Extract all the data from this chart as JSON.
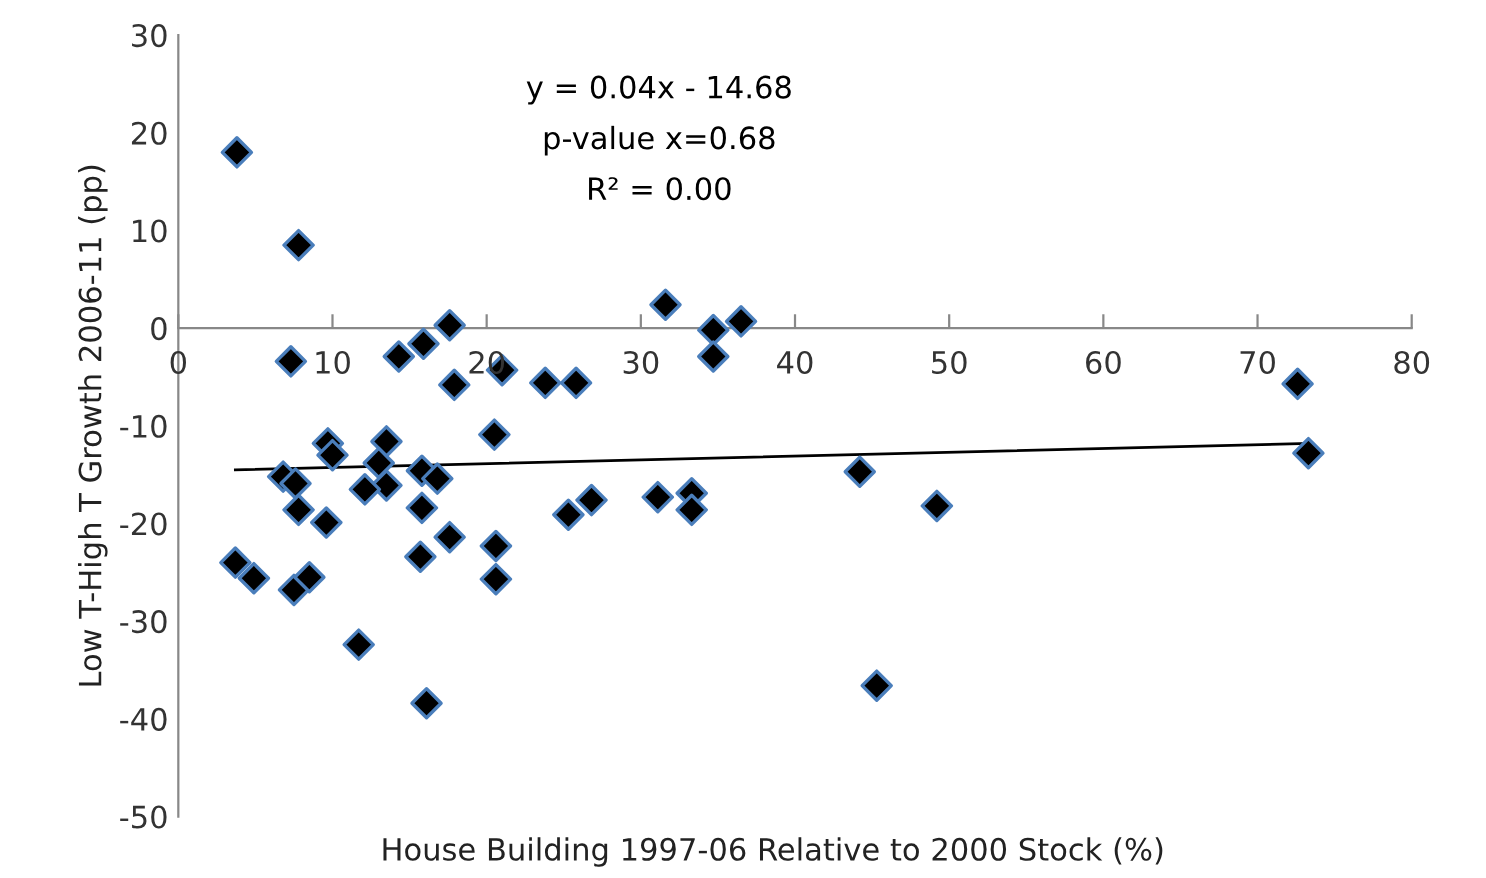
{
  "chart_data": {
    "type": "scatter",
    "xlabel": "House Building 1997-06 Relative to 2000 Stock (%)",
    "ylabel": "Low T-High T Growth 2006-11 (pp)",
    "xlim": [
      0,
      80
    ],
    "xticks": [
      0,
      10,
      20,
      30,
      40,
      50,
      60,
      70,
      80
    ],
    "ylim": [
      -50,
      30
    ],
    "yticks": [
      -50,
      -40,
      -30,
      -20,
      -10,
      0,
      10,
      20,
      30
    ],
    "grid": false,
    "legend": false,
    "marker": "diamond",
    "annotations": [
      "y = 0.04x - 14.68",
      "p-value x=0.68",
      "R² = 0.00"
    ],
    "series": [
      {
        "color": "#000000",
        "x": [
          3.8,
          7.8,
          7.3,
          14.3,
          15.9,
          17.6,
          17.9,
          21.0,
          23.8,
          25.8,
          9.7,
          10.0,
          13.5,
          13.0,
          6.8,
          7.6,
          13.5,
          12.1,
          15.8,
          16.8,
          20.5,
          7.8,
          9.6,
          15.8,
          17.6,
          20.6,
          20.6,
          15.7,
          3.7,
          4.9,
          7.5,
          8.5,
          11.7,
          16.1,
          25.3,
          31.6,
          34.7,
          36.5,
          34.7,
          26.8,
          31.1,
          33.3,
          33.3,
          44.2,
          49.2,
          45.3,
          72.6,
          73.3
        ],
        "values": [
          18.0,
          8.5,
          -3.4,
          -2.9,
          -1.6,
          0.3,
          -5.8,
          -4.3,
          -5.6,
          -5.6,
          -11.8,
          -13.0,
          -11.6,
          -13.8,
          -15.2,
          -15.9,
          -16.1,
          -16.5,
          -14.6,
          -15.4,
          -10.9,
          -18.6,
          -19.9,
          -18.4,
          -21.4,
          -22.3,
          -25.7,
          -23.4,
          -24.0,
          -25.6,
          -26.8,
          -25.5,
          -32.4,
          -38.4,
          -19.1,
          2.4,
          -0.2,
          0.7,
          -2.9,
          -17.6,
          -17.3,
          -16.9,
          -18.6,
          -14.7,
          -18.2,
          -36.6,
          -5.7,
          -12.8
        ]
      },
      {
        "type": "line",
        "color": "#000000",
        "marker": "none",
        "x": [
          3.7,
          73.3
        ],
        "values": [
          -14.5,
          -11.8
        ]
      }
    ]
  }
}
